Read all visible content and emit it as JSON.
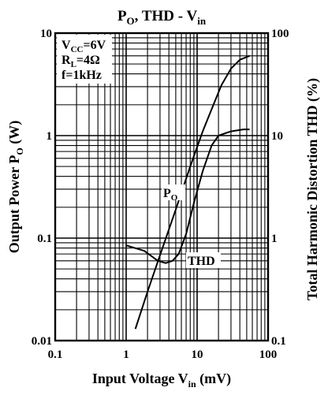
{
  "title": {
    "main": "P",
    "sub": "O",
    "rest": ", THD - V",
    "sub2": "in"
  },
  "conditions": [
    {
      "main": "V",
      "sub": "CC",
      "rest": "=6V"
    },
    {
      "main": "R",
      "sub": "L",
      "rest": "=4Ω"
    },
    {
      "main": "f=1kHz",
      "sub": "",
      "rest": ""
    }
  ],
  "x_axis_label": {
    "main": "Input Voltage V",
    "sub": "in",
    "rest": " (mV)"
  },
  "y_left_label": {
    "main": "Output Power P",
    "sub": "O",
    "rest": " (W)"
  },
  "y_right_label": "Total Harmonic Distortion THD (%)",
  "x_ticks": [
    "0.1",
    "1",
    "10",
    "100"
  ],
  "y_left_ticks": [
    "0.01",
    "0.1",
    "1",
    "10"
  ],
  "y_right_ticks": [
    "0.1",
    "1",
    "10",
    "100"
  ],
  "chart_data": {
    "type": "line",
    "title": "PO, THD - Vin",
    "xlabel": "Input Voltage Vin (mV)",
    "ylabel_left": "Output Power PO (W)",
    "ylabel_right": "Total Harmonic Distortion THD (%)",
    "x_scale": "log",
    "y_scale": "log",
    "xlim": [
      0.1,
      100
    ],
    "ylim_left": [
      0.01,
      10
    ],
    "ylim_right": [
      0.1,
      100
    ],
    "grid": true,
    "series": [
      {
        "name": "PO",
        "axis": "left",
        "x": [
          1.35,
          2.0,
          3.0,
          5.0,
          8.0,
          12.0,
          17.0,
          22.0,
          30.0,
          40.0,
          55.0
        ],
        "y": [
          0.013,
          0.03,
          0.068,
          0.19,
          0.5,
          1.1,
          2.0,
          3.1,
          4.5,
          5.5,
          6.0
        ]
      },
      {
        "name": "THD",
        "axis": "left",
        "x": [
          1.0,
          1.8,
          2.8,
          3.6,
          4.5,
          5.5,
          7.0,
          9.0,
          12.0,
          16.0,
          20.0,
          30.0,
          45.0,
          55.0
        ],
        "y": [
          0.085,
          0.075,
          0.06,
          0.057,
          0.06,
          0.07,
          0.11,
          0.22,
          0.45,
          0.8,
          1.0,
          1.1,
          1.15,
          1.15
        ]
      }
    ]
  }
}
